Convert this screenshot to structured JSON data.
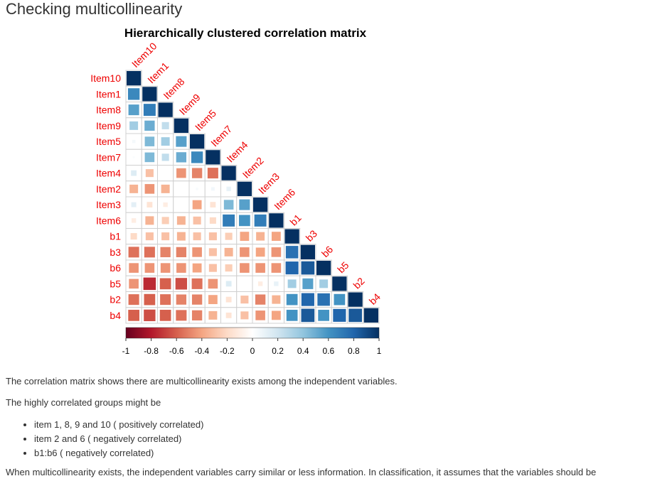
{
  "page": {
    "heading": "Checking multicollinearity",
    "paragraph1": "The correlation matrix shows there are multicollinearity exists among the independent variables.",
    "paragraph2": "The highly correlated groups might be",
    "bullets": [
      "item 1, 8, 9 and 10 ( positively correlated)",
      "item 2 and 6 ( negatively correlated)",
      "b1:b6 ( negatively correlated)"
    ],
    "paragraph3": "When multicollinearity exists, the independent variables carry similar or less information. In classification, it assumes that the variables should be"
  },
  "chart_data": {
    "type": "heatmap",
    "title": "Hierarchically clustered correlation matrix",
    "variables": [
      "Item10",
      "Item1",
      "Item8",
      "Item9",
      "Item5",
      "Item7",
      "Item4",
      "Item2",
      "Item3",
      "Item6",
      "b1",
      "b3",
      "b6",
      "b5",
      "b2",
      "b4"
    ],
    "matrix": [
      [
        1
      ],
      [
        0.65,
        1
      ],
      [
        0.55,
        0.7,
        1
      ],
      [
        0.35,
        0.5,
        0.25,
        1
      ],
      [
        0.05,
        0.45,
        0.35,
        0.55,
        1
      ],
      [
        0.02,
        0.45,
        0.25,
        0.5,
        0.65,
        1
      ],
      [
        0.15,
        -0.3,
        0.0,
        -0.45,
        -0.5,
        -0.55,
        1
      ],
      [
        -0.35,
        -0.45,
        -0.35,
        0.0,
        0.03,
        0.06,
        0.1,
        1
      ],
      [
        0.12,
        -0.15,
        -0.1,
        0.0,
        -0.4,
        -0.15,
        0.45,
        0.55,
        1
      ],
      [
        -0.1,
        -0.35,
        -0.25,
        -0.35,
        -0.3,
        -0.2,
        0.7,
        0.6,
        0.7,
        1
      ],
      [
        -0.2,
        -0.3,
        -0.3,
        -0.35,
        -0.3,
        -0.3,
        -0.25,
        -0.4,
        -0.35,
        -0.4,
        1
      ],
      [
        -0.55,
        -0.55,
        -0.5,
        -0.5,
        -0.45,
        -0.3,
        -0.35,
        -0.45,
        -0.4,
        -0.45,
        0.75,
        1
      ],
      [
        -0.45,
        -0.45,
        -0.45,
        -0.45,
        -0.4,
        -0.3,
        -0.25,
        -0.45,
        -0.45,
        -0.45,
        0.8,
        0.85,
        1
      ],
      [
        -0.45,
        -0.75,
        -0.6,
        -0.65,
        -0.55,
        -0.45,
        0.15,
        0.0,
        -0.1,
        0.1,
        0.35,
        0.55,
        0.35,
        1
      ],
      [
        -0.55,
        -0.6,
        -0.55,
        -0.5,
        -0.5,
        -0.4,
        -0.15,
        -0.3,
        -0.5,
        -0.35,
        0.6,
        0.8,
        0.75,
        0.6,
        1
      ],
      [
        -0.6,
        -0.65,
        -0.6,
        -0.55,
        -0.5,
        -0.35,
        -0.15,
        -0.3,
        -0.45,
        -0.4,
        0.6,
        0.85,
        0.6,
        0.8,
        0.85,
        1
      ]
    ],
    "colorbar_ticks": [
      "-1",
      "-0.8",
      "-0.6",
      "-0.4",
      "-0.2",
      "0",
      "0.2",
      "0.4",
      "0.6",
      "0.8",
      "1"
    ],
    "colorbar_range": [
      -1,
      1
    ],
    "colors": {
      "label": "#ee0000",
      "scale": [
        "#67001F",
        "#B2182B",
        "#D6604D",
        "#F4A582",
        "#FDDBC7",
        "#FFFFFF",
        "#D1E5F0",
        "#92C5DE",
        "#4393C3",
        "#2166AC",
        "#053061"
      ]
    }
  }
}
